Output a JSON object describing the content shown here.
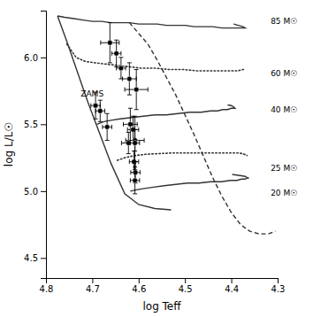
{
  "chart_data": {
    "type": "line",
    "xlabel": "log Teff",
    "ylabel": "log L/L☉",
    "xlim": [
      4.8,
      4.3
    ],
    "ylim": [
      4.35,
      6.35
    ],
    "xticks": [
      4.8,
      4.7,
      4.6,
      4.5,
      4.4,
      4.3
    ],
    "yticks": [
      {
        "value": 4.5,
        "label": "4.5"
      },
      {
        "value": 5.0,
        "label": "5.0"
      },
      {
        "value": 5.5,
        "label": "5.5"
      },
      {
        "value": 6.0,
        "label": "6.0"
      }
    ],
    "grid": false,
    "annotations": [
      {
        "text": "ZAMS",
        "x": 4.725,
        "y": 5.73
      },
      {
        "text": "85 M☉",
        "x": 4.315,
        "y": 6.27
      },
      {
        "text": "60 M☉",
        "x": 4.315,
        "y": 5.88
      },
      {
        "text": "40 M☉",
        "x": 4.315,
        "y": 5.61
      },
      {
        "text": "25 M☉",
        "x": 4.315,
        "y": 5.17
      },
      {
        "text": "20 M☉",
        "x": 4.315,
        "y": 4.985
      }
    ],
    "series": [
      {
        "type": "line",
        "color": "#333333",
        "line_style": "solid",
        "x": [
          4.775,
          4.755,
          4.735,
          4.71,
          4.685,
          4.66,
          4.63,
          4.6,
          4.565,
          4.53
        ],
        "values": [
          6.31,
          6.12,
          5.92,
          5.67,
          5.44,
          5.21,
          4.98,
          4.9,
          4.87,
          4.86
        ]
      },
      {
        "type": "line",
        "color": "#333333",
        "line_style": "solid",
        "x": [
          4.775,
          4.76,
          4.74,
          4.72,
          4.7,
          4.68,
          4.66,
          4.64,
          4.62,
          4.6,
          4.58,
          4.56,
          4.54,
          4.52,
          4.5,
          4.48,
          4.46,
          4.44,
          4.42,
          4.405,
          4.395,
          4.385,
          4.375,
          4.37,
          4.375,
          4.385,
          4.395
        ],
        "values": [
          6.31,
          6.3,
          6.29,
          6.28,
          6.27,
          6.27,
          6.26,
          6.26,
          6.26,
          6.25,
          6.25,
          6.25,
          6.24,
          6.24,
          6.24,
          6.23,
          6.23,
          6.23,
          6.22,
          6.22,
          6.22,
          6.22,
          6.22,
          6.22,
          6.23,
          6.24,
          6.25
        ]
      },
      {
        "type": "line",
        "color": "#333333",
        "line_style": "dashed",
        "x": [
          4.62,
          4.6,
          4.58,
          4.56,
          4.54,
          4.52,
          4.5,
          4.48,
          4.46,
          4.44,
          4.42,
          4.4,
          4.38,
          4.36,
          4.34,
          4.32,
          4.305
        ],
        "values": [
          6.26,
          6.18,
          6.1,
          5.98,
          5.85,
          5.72,
          5.57,
          5.42,
          5.26,
          5.1,
          4.96,
          4.84,
          4.75,
          4.7,
          4.68,
          4.68,
          4.7
        ]
      },
      {
        "type": "line",
        "color": "#333333",
        "line_style": "dotted",
        "x": [
          4.755,
          4.735,
          4.715,
          4.695,
          4.67,
          4.645,
          4.62,
          4.595,
          4.565,
          4.535,
          4.505,
          4.475,
          4.45,
          4.43,
          4.415,
          4.405,
          4.395,
          4.385,
          4.375,
          4.37
        ],
        "values": [
          6.1,
          6.0,
          5.97,
          5.96,
          5.95,
          5.94,
          5.93,
          5.92,
          5.92,
          5.91,
          5.91,
          5.9,
          5.9,
          5.9,
          5.9,
          5.9,
          5.9,
          5.9,
          5.91,
          5.91
        ]
      },
      {
        "type": "line",
        "color": "#333333",
        "line_style": "solid",
        "x": [
          4.69,
          4.675,
          4.66,
          4.64,
          4.615,
          4.59,
          4.565,
          4.54,
          4.515,
          4.49,
          4.465,
          4.445,
          4.43,
          4.418,
          4.408,
          4.4,
          4.395,
          4.392,
          4.395,
          4.4,
          4.408
        ],
        "values": [
          5.5,
          5.52,
          5.53,
          5.54,
          5.55,
          5.56,
          5.57,
          5.57,
          5.58,
          5.59,
          5.59,
          5.6,
          5.6,
          5.61,
          5.61,
          5.62,
          5.62,
          5.62,
          5.63,
          5.64,
          5.645
        ]
      },
      {
        "type": "line",
        "color": "#333333",
        "line_style": "dotted",
        "x": [
          4.646,
          4.63,
          4.61,
          4.585,
          4.56,
          4.53,
          4.5,
          4.47,
          4.445,
          4.425,
          4.408,
          4.395,
          4.385,
          4.375,
          4.368,
          4.365,
          4.368,
          4.375
        ],
        "values": [
          5.23,
          5.25,
          5.265,
          5.275,
          5.28,
          5.285,
          5.285,
          5.285,
          5.285,
          5.285,
          5.285,
          5.285,
          5.285,
          5.28,
          5.27,
          5.265,
          5.27,
          5.28
        ]
      },
      {
        "type": "line",
        "color": "#333333",
        "line_style": "solid",
        "x": [
          4.618,
          4.605,
          4.588,
          4.568,
          4.545,
          4.52,
          4.495,
          4.47,
          4.445,
          4.422,
          4.402,
          4.388,
          4.378,
          4.37,
          4.365,
          4.362,
          4.365,
          4.37,
          4.378,
          4.388,
          4.398
        ],
        "values": [
          5.0,
          5.01,
          5.02,
          5.03,
          5.04,
          5.05,
          5.06,
          5.06,
          5.07,
          5.07,
          5.08,
          5.08,
          5.09,
          5.09,
          5.1,
          5.095,
          5.1,
          5.11,
          5.115,
          5.12,
          5.125
        ]
      },
      {
        "type": "scatter",
        "color": "black",
        "marker": "circle",
        "x": [
          4.662,
          4.648,
          4.638,
          4.62,
          4.605,
          4.693,
          4.683,
          4.668,
          4.618,
          4.612,
          4.608,
          4.622,
          4.61,
          4.608,
          4.607,
          4.608
        ],
        "values": [
          6.11,
          6.03,
          5.92,
          5.84,
          5.76,
          5.64,
          5.6,
          5.48,
          5.5,
          5.46,
          5.38,
          5.36,
          5.22,
          5.36,
          5.14,
          5.08
        ],
        "xerr": [
          0.02,
          0.01,
          0.01,
          0.015,
          0.025,
          0.01,
          0.01,
          0.01,
          0.015,
          0.012,
          0.02,
          0.015,
          0.01,
          0.01,
          0.01,
          0.01
        ],
        "yerr": [
          0.15,
          0.1,
          0.08,
          0.12,
          0.15,
          0.1,
          0.08,
          0.1,
          0.12,
          0.1,
          0.08,
          0.08,
          0.08,
          0.2,
          0.08,
          0.1
        ]
      }
    ]
  }
}
